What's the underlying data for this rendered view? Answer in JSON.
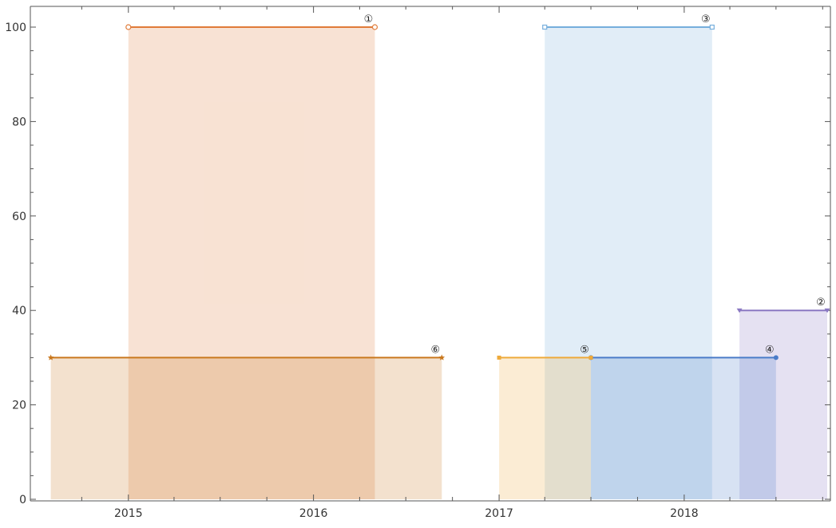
{
  "chart_data": {
    "type": "area",
    "title": "",
    "xlabel": "",
    "ylabel": "",
    "xlim": [
      "2014-07-20",
      "2018-10-10"
    ],
    "ylim": [
      0,
      100
    ],
    "x_ticks": [
      "2015",
      "2016",
      "2017",
      "2018"
    ],
    "y_ticks": [
      "0",
      "20",
      "40",
      "60",
      "80",
      "100"
    ],
    "grid": false,
    "series": [
      {
        "label": "①",
        "start": "2015-01-01",
        "end": "2016-05-01",
        "value": 100,
        "color": "#e07b39",
        "marker": "circle-open"
      },
      {
        "label": "②",
        "start": "2018-04-20",
        "end": "2018-10-10",
        "value": 40,
        "color": "#8a78c2",
        "marker": "triangle-down"
      },
      {
        "label": "③",
        "start": "2017-04-01",
        "end": "2018-02-25",
        "value": 100,
        "color": "#76aedc",
        "marker": "square-open"
      },
      {
        "label": "④",
        "start": "2017-07-01",
        "end": "2018-07-01",
        "value": 30,
        "color": "#4a7cc8",
        "marker": "circle"
      },
      {
        "label": "⑤",
        "start": "2017-01-01",
        "end": "2017-07-01",
        "value": 30,
        "color": "#eeaa3a",
        "marker": "square"
      },
      {
        "label": "⑥",
        "start": "2014-08-01",
        "end": "2016-09-10",
        "value": 30,
        "color": "#c9781e",
        "marker": "star"
      }
    ]
  }
}
